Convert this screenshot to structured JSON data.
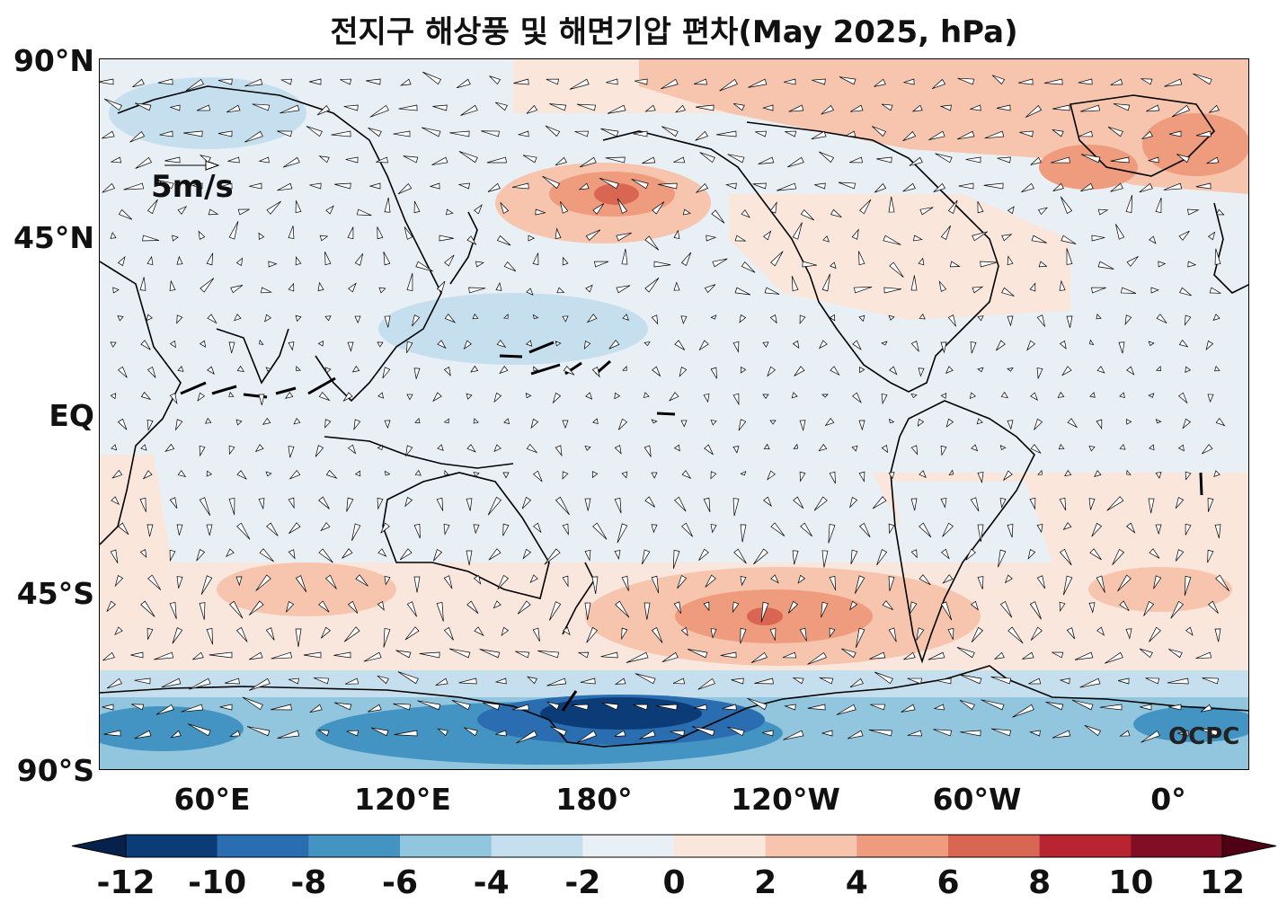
{
  "title": "전지구 해상풍 및 해면기압 편차(May 2025, hPa)",
  "lat_ticks": [
    "90°N",
    "45°N",
    "EQ",
    "45°S",
    "90°S"
  ],
  "lon_ticks": [
    "60°E",
    "120°E",
    "180°",
    "120°W",
    "60°W",
    "0°"
  ],
  "colorbar": {
    "ticks": [
      "-12",
      "-10",
      "-8",
      "-6",
      "-4",
      "-2",
      "0",
      "2",
      "4",
      "6",
      "8",
      "10",
      "12"
    ],
    "colors": [
      "#0b3c78",
      "#2a6db0",
      "#4393c3",
      "#92c5de",
      "#c6dfee",
      "#e8f0f6",
      "#fbe6dc",
      "#f7c5ad",
      "#ef9b7d",
      "#d96553",
      "#b82531",
      "#810e24"
    ],
    "extend_low_color": "#06214a",
    "extend_high_color": "#4f0015"
  },
  "reference_vector": "5m/s",
  "watermark": "OCPC",
  "map_colors": {
    "land_outline": "#000000",
    "vector_fill": "#ffffff",
    "strong_vector": "#000000"
  }
}
